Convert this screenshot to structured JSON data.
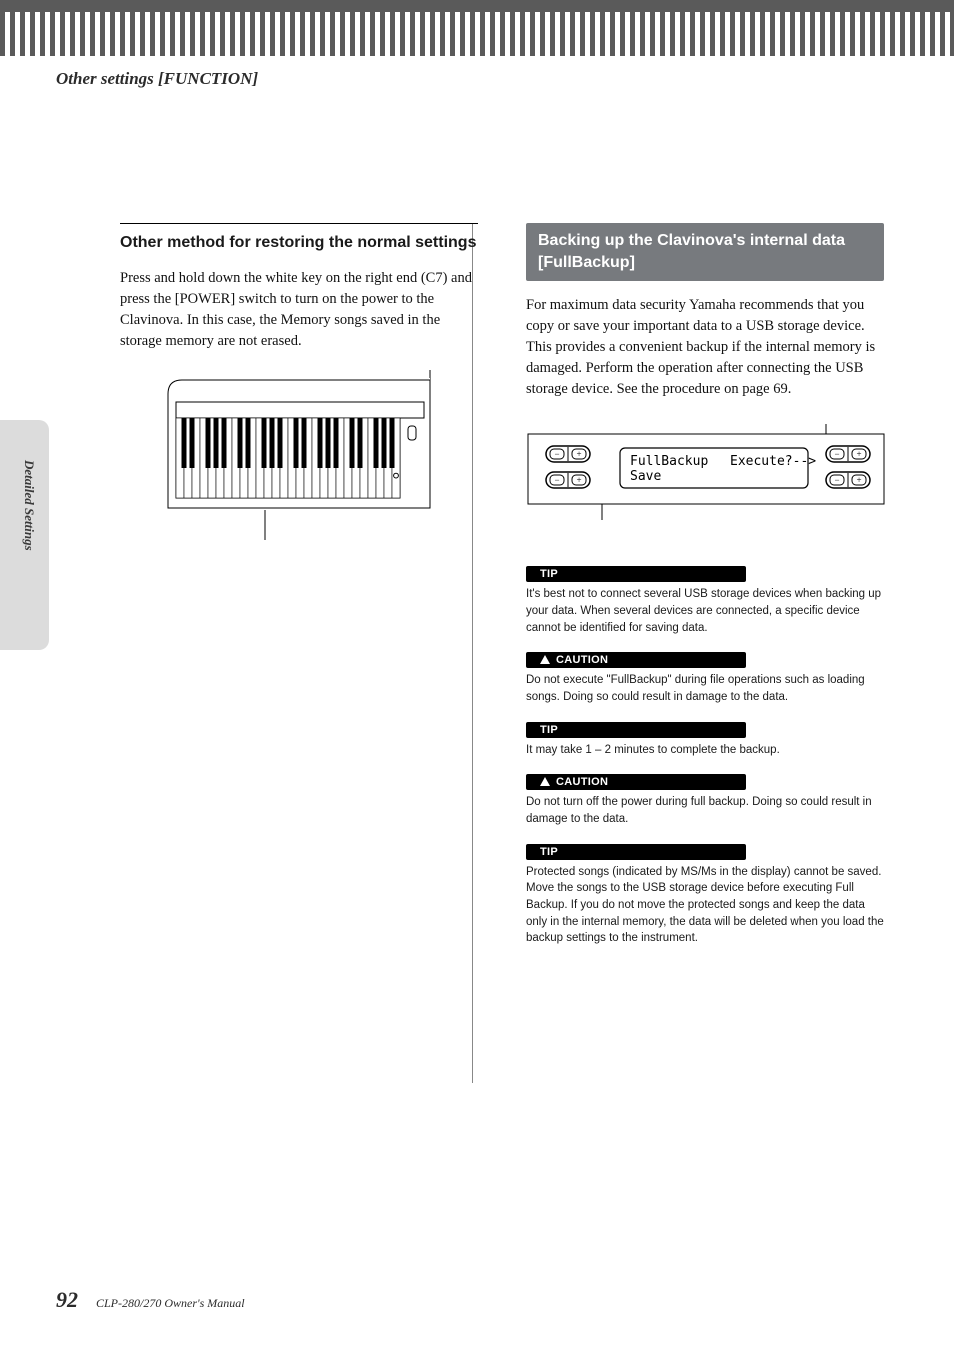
{
  "page": {
    "section_header": "Other settings [FUNCTION]",
    "side_tab": "Detailed Settings",
    "page_number": "92",
    "doc_title": "CLP-280/270 Owner's Manual"
  },
  "left": {
    "subhead": "Other method for restoring the normal settings",
    "body": "Press and hold down the white key on the right end (C7) and press the [POWER] switch to turn on the power to the Clavinova. In this case, the Memory songs saved in the storage memory are not erased.",
    "keyboard": {
      "octaves": 4,
      "white_key_width": 10,
      "white_key_height": 64,
      "black_key_width": 6,
      "black_key_height": 40,
      "white_color": "#ffffff",
      "black_color": "#000000",
      "outline_color": "#000000",
      "fig_bg": "#ffffff"
    }
  },
  "right": {
    "section_title": "Backing up the Clavinova's internal data [FullBackup]",
    "body": "For maximum data security Yamaha recommends that you copy or save your important data to a USB storage device. This provides a convenient backup if the internal memory is damaged. Perform the operation after connecting the USB storage device. See the procedure on page 69.",
    "lcd": {
      "line1": "FullBackup",
      "line1b": "Execute?-->",
      "line2": "Save",
      "font_family": "monospace",
      "bg": "#ffffff",
      "border": "#000000",
      "pill_minus": "−",
      "pill_plus": "+"
    },
    "notes": [
      {
        "label": "TIP",
        "kind": "tip",
        "text": "It's best not to connect several USB storage devices when backing up your data. When several devices are connected, a specific device cannot be identified for saving data."
      },
      {
        "label": "CAUTION",
        "kind": "caution",
        "text": "Do not execute \"FullBackup\" during file operations such as loading songs. Doing so could result in damage to the data."
      },
      {
        "label": "TIP",
        "kind": "tip",
        "text": "It may take 1 – 2 minutes to complete the backup."
      },
      {
        "label": "CAUTION",
        "kind": "caution",
        "text": "Do not turn off the power during full backup. Doing so could result in damage to the data."
      },
      {
        "label": "TIP",
        "kind": "tip",
        "text": "Protected songs (indicated by MS/Ms in the display) cannot be saved. Move the songs to the USB storage device before executing Full Backup. If you do not move the protected songs and keep the data only in the internal memory, the data will be deleted when you load the backup settings to the instrument."
      }
    ]
  },
  "colors": {
    "section_bar_bg": "#777a7e",
    "pill_bg": "#000000",
    "side_tab_bg": "#dcdcdc"
  }
}
